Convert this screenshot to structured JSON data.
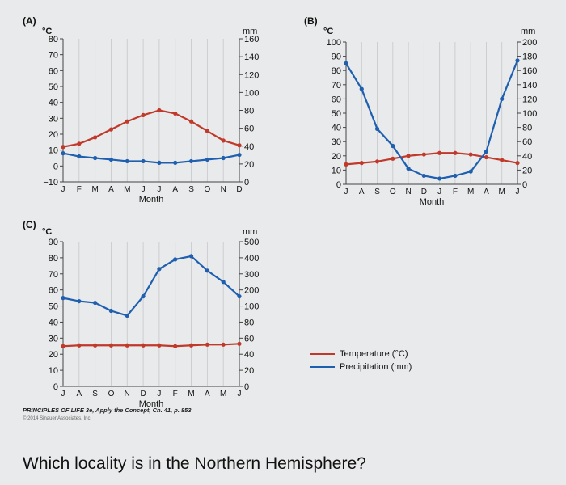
{
  "chart_data": [
    {
      "type": "line",
      "panel_label": "(A)",
      "left_unit": "°C",
      "right_unit": "mm",
      "xlabel": "Month",
      "categories": [
        "J",
        "F",
        "M",
        "A",
        "M",
        "J",
        "J",
        "A",
        "S",
        "O",
        "N",
        "D"
      ],
      "left_ticks": [
        "80",
        "70",
        "60",
        "50",
        "40",
        "30",
        "20",
        "10",
        "0",
        "−10"
      ],
      "right_ticks": [
        "160",
        "140",
        "120",
        "100",
        "80",
        "60",
        "40",
        "20",
        "0"
      ],
      "temperature": [
        12,
        14,
        18,
        23,
        28,
        32,
        35,
        33,
        28,
        22,
        16,
        13
      ],
      "precipitation": [
        8,
        6,
        5,
        4,
        3,
        3,
        2,
        2,
        3,
        4,
        5,
        7
      ]
    },
    {
      "type": "line",
      "panel_label": "(B)",
      "left_unit": "°C",
      "right_unit": "mm",
      "xlabel": "Month",
      "categories": [
        "J",
        "A",
        "S",
        "O",
        "N",
        "D",
        "J",
        "F",
        "M",
        "A",
        "M",
        "J"
      ],
      "left_ticks": [
        "100",
        "90",
        "80",
        "70",
        "60",
        "50",
        "40",
        "30",
        "20",
        "10",
        "0"
      ],
      "right_ticks": [
        "200",
        "180",
        "160",
        "140",
        "120",
        "100",
        "80",
        "60",
        "40",
        "20",
        "0"
      ],
      "temperature": [
        14,
        15,
        16,
        18,
        20,
        21,
        22,
        22,
        21,
        19,
        17,
        15
      ],
      "precipitation": [
        85,
        67,
        39,
        27,
        11,
        6,
        4,
        6,
        9,
        23,
        60,
        87
      ]
    },
    {
      "type": "line",
      "panel_label": "(C)",
      "left_unit": "°C",
      "right_unit": "mm",
      "xlabel": "Month",
      "categories": [
        "J",
        "A",
        "S",
        "O",
        "N",
        "D",
        "J",
        "F",
        "M",
        "A",
        "M",
        "J"
      ],
      "left_ticks": [
        "90",
        "80",
        "70",
        "60",
        "50",
        "40",
        "30",
        "20",
        "10",
        "0"
      ],
      "right_ticks": [
        "500",
        "400",
        "300",
        "200",
        "100",
        "80",
        "60",
        "40",
        "20",
        "0"
      ],
      "temperature": [
        25,
        25.5,
        25.5,
        25.5,
        25.5,
        25.5,
        25.5,
        25,
        25.5,
        26,
        26,
        26.5
      ],
      "precipitation": [
        55,
        53,
        52,
        47,
        44,
        56,
        73,
        79,
        81,
        72,
        65,
        56
      ]
    }
  ],
  "legend": [
    {
      "label": "Temperature (°C)",
      "color": "#c0392b"
    },
    {
      "label": "Precipitation (mm)",
      "color": "#1f5fb0"
    }
  ],
  "colors": {
    "temperature": "#c0392b",
    "precipitation": "#1f5fb0"
  },
  "credit": "PRINCIPLES OF LIFE 3e, Apply the Concept, Ch. 41, p. 853",
  "copyright": "© 2014 Sinauer Associates, Inc.",
  "question": "Which locality is in the Northern Hemisphere?"
}
